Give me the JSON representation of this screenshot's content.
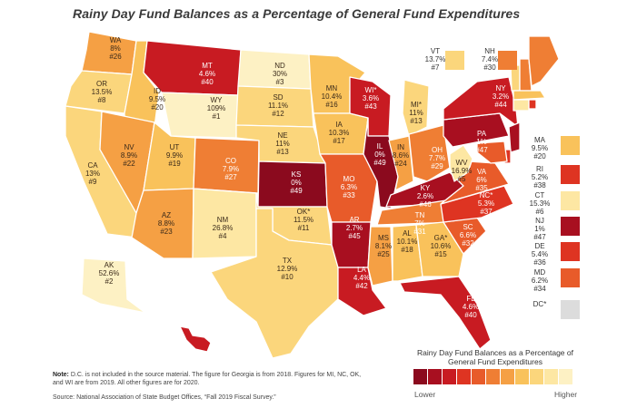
{
  "title": "Rainy Day Fund Balances as a Percentage of General Fund Expenditures",
  "legend": {
    "title": "Rainy Day Fund Balances as a Percentage of General Fund Expenditures",
    "low": "Lower",
    "high": "Higher",
    "colors": [
      "#8b0a1e",
      "#a80f20",
      "#c81b22",
      "#de3422",
      "#e85b2a",
      "#ef7e34",
      "#f5a044",
      "#f9c25b",
      "#fbd67c",
      "#fde7a3",
      "#fdf1c4"
    ]
  },
  "note_label": "Note:",
  "note": "D.C. is not included in the source material. The figure for Georgia is from 2018. Figures for MI, NC, OK, and WI are from 2019. All other figures are for 2020.",
  "source": "Source: National Association of State Budget Offices, “Fall 2019 Fiscal Survey.”",
  "states": {
    "WA": {
      "name": "WA",
      "value": "8%",
      "rank": "#26",
      "color": "#f5a044"
    },
    "OR": {
      "name": "OR",
      "value": "13.5%",
      "rank": "#8",
      "color": "#fbd67c"
    },
    "CA": {
      "name": "CA",
      "value": "13%",
      "rank": "#9",
      "color": "#fbd67c"
    },
    "ID": {
      "name": "ID",
      "value": "9.5%",
      "rank": "#20",
      "color": "#f9c25b"
    },
    "NV": {
      "name": "NV",
      "value": "8.9%",
      "rank": "#22",
      "color": "#f5a044"
    },
    "MT": {
      "name": "MT",
      "value": "4.6%",
      "rank": "#40",
      "color": "#c81b22"
    },
    "WY": {
      "name": "WY",
      "value": "109%",
      "rank": "#1",
      "color": "#fdf1c4"
    },
    "UT": {
      "name": "UT",
      "value": "9.9%",
      "rank": "#19",
      "color": "#f9c25b"
    },
    "AZ": {
      "name": "AZ",
      "value": "8.8%",
      "rank": "#23",
      "color": "#f5a044"
    },
    "CO": {
      "name": "CO",
      "value": "7.9%",
      "rank": "#27",
      "color": "#ef7e34"
    },
    "NM": {
      "name": "NM",
      "value": "26.8%",
      "rank": "#4",
      "color": "#fde7a3"
    },
    "ND": {
      "name": "ND",
      "value": "30%",
      "rank": "#3",
      "color": "#fdf1c4"
    },
    "SD": {
      "name": "SD",
      "value": "11.1%",
      "rank": "#12",
      "color": "#fbd67c"
    },
    "NE": {
      "name": "NE",
      "value": "11%",
      "rank": "#13",
      "color": "#fbd67c"
    },
    "KS": {
      "name": "KS",
      "value": "0%",
      "rank": "#49",
      "color": "#8b0a1e"
    },
    "OK": {
      "name": "OK*",
      "value": "11.5%",
      "rank": "#11",
      "color": "#fbd67c"
    },
    "TX": {
      "name": "TX",
      "value": "12.9%",
      "rank": "#10",
      "color": "#fbd67c"
    },
    "MN": {
      "name": "MN",
      "value": "10.4%",
      "rank": "#16",
      "color": "#f9c25b"
    },
    "IA": {
      "name": "IA",
      "value": "10.3%",
      "rank": "#17",
      "color": "#f9c25b"
    },
    "MO": {
      "name": "MO",
      "value": "6.3%",
      "rank": "#33",
      "color": "#e85b2a"
    },
    "AR": {
      "name": "AR",
      "value": "2.7%",
      "rank": "#45",
      "color": "#a80f20"
    },
    "LA": {
      "name": "LA",
      "value": "4.4%",
      "rank": "#42",
      "color": "#c81b22"
    },
    "WI": {
      "name": "WI*",
      "value": "3.6%",
      "rank": "#43",
      "color": "#c81b22"
    },
    "IL": {
      "name": "IL",
      "value": "0%",
      "rank": "#49",
      "color": "#8b0a1e"
    },
    "MI": {
      "name": "MI*",
      "value": "11%",
      "rank": "#13",
      "color": "#fbd67c"
    },
    "IN": {
      "name": "IN",
      "value": "8.6%",
      "rank": "#24",
      "color": "#f5a044"
    },
    "OH": {
      "name": "OH",
      "value": "7.7%",
      "rank": "#29",
      "color": "#ef7e34"
    },
    "KY": {
      "name": "KY",
      "value": "2.6%",
      "rank": "#46",
      "color": "#a80f20"
    },
    "TN": {
      "name": "TN",
      "value": "7%",
      "rank": "#31",
      "color": "#ef7e34"
    },
    "MS": {
      "name": "MS",
      "value": "8.1%",
      "rank": "#25",
      "color": "#f5a044"
    },
    "AL": {
      "name": "AL",
      "value": "10.1%",
      "rank": "#18",
      "color": "#f9c25b"
    },
    "GA": {
      "name": "GA*",
      "value": "10.6%",
      "rank": "#15",
      "color": "#f9c25b"
    },
    "FL": {
      "name": "FL",
      "value": "4.6%",
      "rank": "#40",
      "color": "#c81b22"
    },
    "SC": {
      "name": "SC",
      "value": "6.6%",
      "rank": "#32",
      "color": "#e85b2a"
    },
    "NC": {
      "name": "NC*",
      "value": "5.3%",
      "rank": "#37",
      "color": "#de3422"
    },
    "VA": {
      "name": "VA",
      "value": "6%",
      "rank": "#35",
      "color": "#e85b2a"
    },
    "WV": {
      "name": "WV",
      "value": "16.9%",
      "rank": "#5",
      "color": "#fde7a3"
    },
    "PA": {
      "name": "PA",
      "value": "1%",
      "rank": "#47",
      "color": "#a80f20"
    },
    "NY": {
      "name": "NY",
      "value": "3.2%",
      "rank": "#44",
      "color": "#c81b22"
    },
    "ME": {
      "name": "ME",
      "value": "7.8%",
      "rank": "#28",
      "color": "#ef7e34"
    },
    "VT": {
      "name": "VT",
      "value": "13.7%",
      "rank": "#7",
      "color": "#fbd67c"
    },
    "NH": {
      "name": "NH",
      "value": "7.4%",
      "rank": "#30",
      "color": "#ef7e34"
    },
    "MA": {
      "name": "MA",
      "value": "9.5%",
      "rank": "#20",
      "color": "#f9c25b"
    },
    "RI": {
      "name": "RI",
      "value": "5.2%",
      "rank": "#38",
      "color": "#de3422"
    },
    "CT": {
      "name": "CT",
      "value": "15.3%",
      "rank": "#6",
      "color": "#fde7a3"
    },
    "NJ": {
      "name": "NJ",
      "value": "1%",
      "rank": "#47",
      "color": "#a80f20"
    },
    "DE": {
      "name": "DE",
      "value": "5.4%",
      "rank": "#36",
      "color": "#de3422"
    },
    "MD": {
      "name": "MD",
      "value": "6.2%",
      "rank": "#34",
      "color": "#e85b2a"
    },
    "DC": {
      "name": "DC*",
      "value": "",
      "rank": "",
      "color": "#dcdcdc"
    },
    "AK": {
      "name": "AK",
      "value": "52.6%",
      "rank": "#2",
      "color": "#fdf1c4"
    },
    "HI": {
      "name": "HI",
      "value": "4.8%",
      "rank": "#39",
      "color": "#c81b22"
    }
  }
}
